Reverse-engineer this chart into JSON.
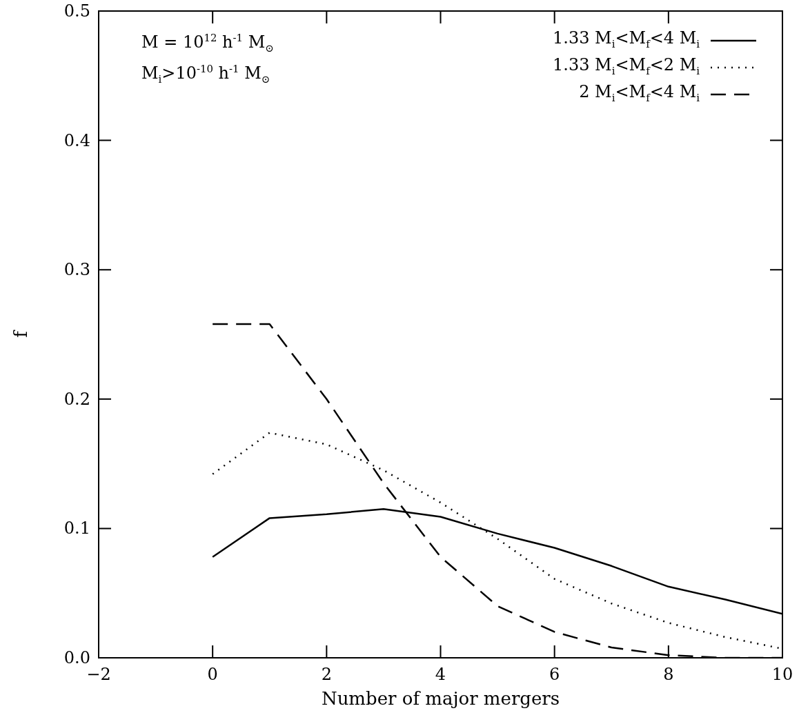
{
  "chart_data": {
    "type": "line",
    "xlabel": "Number of major mergers",
    "ylabel": "f",
    "x": [
      0,
      1,
      2,
      3,
      4,
      5,
      6,
      7,
      8,
      9,
      10
    ],
    "xlim": [
      -2,
      10
    ],
    "xticks": [
      -2,
      0,
      2,
      4,
      6,
      8,
      10
    ],
    "ylim": [
      0,
      0.5
    ],
    "yticks": [
      {
        "value": 0,
        "label": "0.0"
      },
      0.1,
      0.2,
      0.3,
      0.4,
      0.5
    ],
    "grid": false,
    "legend": "top right",
    "marker": "none",
    "annotations": [
      "M = 10$^{12}$ h$^{-1}$ M$_{⊙}$",
      "M$_{i}$>10$^{-10}$ h$^{-1}$ M$_{⊙}$"
    ],
    "series": [
      {
        "name": "1.33 M$_{i}$<M$_{f}$<4 M$_{i}$",
        "color": "#000000",
        "line_style": "solid",
        "values": [
          0.078,
          0.108,
          0.111,
          0.115,
          0.109,
          0.096,
          0.085,
          0.071,
          0.055,
          0.045,
          0.034
        ]
      },
      {
        "name": "1.33 M$_{i}$<M$_{f}$<2 M$_{i}$",
        "color": "#000000",
        "line_style": "dotted",
        "values": [
          0.142,
          0.174,
          0.165,
          0.145,
          0.12,
          0.092,
          0.061,
          0.042,
          0.027,
          0.016,
          0.007
        ]
      },
      {
        "name": "2 M$_{i}$<M$_{f}$<4 M$_{i}$",
        "color": "#000000",
        "line_style": "dashed",
        "values": [
          0.258,
          0.258,
          0.2,
          0.135,
          0.078,
          0.04,
          0.02,
          0.008,
          0.002,
          0,
          0
        ]
      }
    ]
  }
}
